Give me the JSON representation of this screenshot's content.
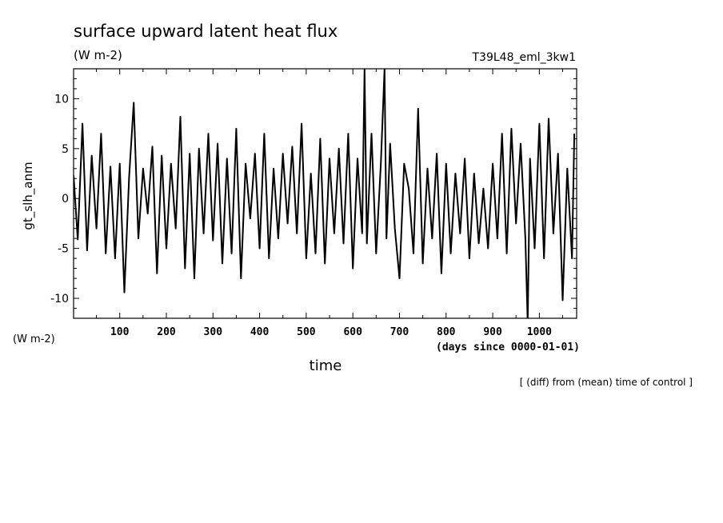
{
  "chart_data": {
    "type": "line",
    "title": "surface upward latent heat flux",
    "units": "(W m-2)",
    "experiment": "T39L48_eml_3kw1",
    "ylabel": "gt_slh_anm",
    "y_units": "(W m-2)",
    "xlabel": "time",
    "x_units": "(days since 0000-01-01)",
    "note": "[ (diff) from (mean) time of control ]",
    "xlim": [
      1,
      1080
    ],
    "ylim": [
      -12,
      13
    ],
    "x_ticks": [
      "100",
      "200",
      "300",
      "400",
      "500",
      "600",
      "700",
      "800",
      "900",
      "1000"
    ],
    "y_ticks": [
      "10",
      "5",
      "0",
      "-5",
      "-10"
    ],
    "grid": false,
    "color": "#000000",
    "series": [
      {
        "x": [
          1,
          10,
          20,
          30,
          40,
          50,
          60,
          70,
          80,
          90,
          100,
          110,
          120,
          130,
          140,
          150,
          160,
          170,
          180,
          190,
          200,
          210,
          220,
          230,
          240,
          250,
          260,
          270,
          280,
          290,
          300,
          310,
          320,
          330,
          340,
          350,
          360,
          370,
          380,
          390,
          400,
          410,
          420,
          430,
          440,
          450,
          460,
          470,
          480,
          490,
          500,
          510,
          520,
          530,
          540,
          550,
          560,
          570,
          580,
          590,
          600,
          610,
          620,
          625,
          630,
          640,
          650,
          660,
          668,
          672,
          680,
          690,
          700,
          710,
          720,
          730,
          740,
          750,
          760,
          770,
          780,
          790,
          800,
          810,
          820,
          830,
          840,
          850,
          860,
          870,
          880,
          890,
          900,
          910,
          920,
          930,
          940,
          950,
          960,
          970,
          975,
          980,
          990,
          1000,
          1010,
          1020,
          1030,
          1040,
          1050,
          1060,
          1070,
          1075
        ],
        "values": [
          2.3,
          -4.1,
          7.5,
          -5.2,
          4.3,
          -3.0,
          6.5,
          -5.5,
          3.2,
          -6.0,
          3.5,
          -9.4,
          2.1,
          9.6,
          -4.0,
          3.0,
          -1.5,
          5.2,
          -7.5,
          4.3,
          -5.0,
          3.5,
          -3.0,
          8.2,
          -7.0,
          4.5,
          -8.0,
          5.0,
          -3.5,
          6.5,
          -4.2,
          5.5,
          -6.5,
          4.0,
          -5.5,
          7.0,
          -8.0,
          3.5,
          -2.0,
          4.5,
          -5.0,
          6.5,
          -6.0,
          3.0,
          -4.0,
          4.5,
          -2.5,
          5.2,
          -3.5,
          7.5,
          -6.0,
          2.5,
          -5.5,
          6.0,
          -6.5,
          4.0,
          -3.5,
          5.0,
          -4.5,
          6.5,
          -7.0,
          4.0,
          -3.5,
          13.0,
          -4.5,
          6.5,
          -5.5,
          3.5,
          13.0,
          -4.0,
          5.5,
          -3.0,
          -8.0,
          3.5,
          1.0,
          -5.5,
          9.0,
          -6.5,
          3.0,
          -4.0,
          4.5,
          -7.5,
          3.5,
          -5.5,
          2.5,
          -3.5,
          4.0,
          -6.0,
          2.5,
          -4.5,
          1.0,
          -5.0,
          3.5,
          -4.0,
          6.5,
          -5.5,
          7.0,
          -2.5,
          5.5,
          -4.0,
          -12.5,
          4.0,
          -5.0,
          7.5,
          -6.0,
          8.0,
          -3.5,
          4.5,
          -10.2,
          3.0,
          -6.0,
          6.5
        ]
      }
    ]
  }
}
